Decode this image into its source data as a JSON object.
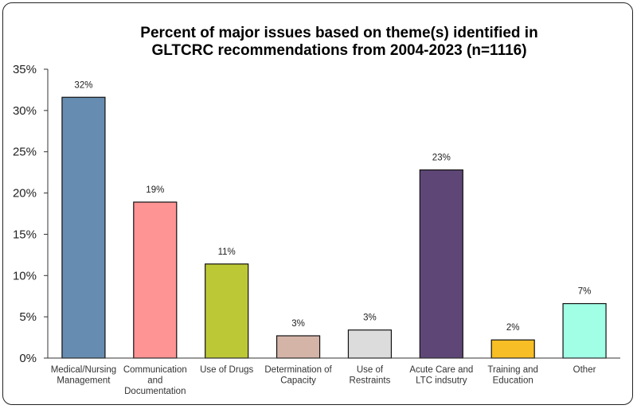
{
  "chart_data": {
    "type": "bar",
    "title": [
      "Percent of major issues based on theme(s) identified in",
      "GLTCRC recommendations from 2004-2023 (n=1116)"
    ],
    "xlabel": "",
    "ylabel": "",
    "ylim": [
      0,
      35
    ],
    "yticks": [
      0,
      5,
      10,
      15,
      20,
      25,
      30,
      35
    ],
    "ytick_labels": [
      "0%",
      "5%",
      "10%",
      "15%",
      "20%",
      "25%",
      "30%",
      "35%"
    ],
    "categories": [
      [
        "Medical/Nursing",
        "Management"
      ],
      [
        "Communication",
        "and",
        "Documentation"
      ],
      [
        "Use of Drugs"
      ],
      [
        "Determination of",
        "Capacity"
      ],
      [
        "Use of",
        "Restraints"
      ],
      [
        "Acute Care and",
        "LTC indsutry"
      ],
      [
        "Training and",
        "Education"
      ],
      [
        "Other"
      ]
    ],
    "values": [
      31.6,
      18.9,
      11.4,
      2.7,
      3.4,
      22.8,
      2.2,
      6.6
    ],
    "data_labels": [
      "32%",
      "19%",
      "11%",
      "3%",
      "3%",
      "23%",
      "2%",
      "7%"
    ],
    "colors": [
      "#668db1",
      "#ff9494",
      "#bdc836",
      "#d5b4a8",
      "#dcdcdc",
      "#5e4777",
      "#f7be25",
      "#a1ffe6"
    ],
    "grid": false,
    "legend": "none"
  }
}
